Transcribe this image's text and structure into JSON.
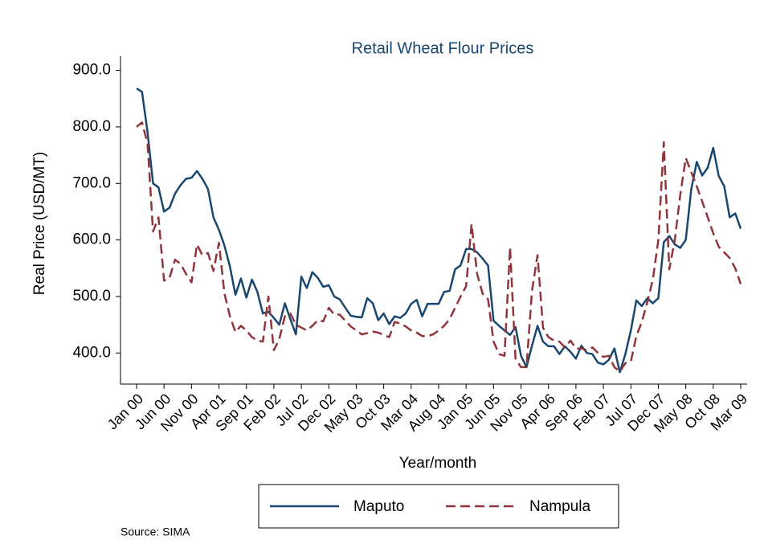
{
  "chart_data": {
    "type": "line",
    "title": "Retail Wheat Flour Prices",
    "x_label": "Year/month",
    "y_label": "Real Price (USD/MT)",
    "source": "Source: SIMA",
    "categories": [
      "Jan 00",
      null,
      null,
      null,
      null,
      "Jun 00",
      null,
      null,
      null,
      null,
      "Nov 00",
      null,
      null,
      null,
      null,
      "Apr 01",
      null,
      null,
      null,
      null,
      "Sep 01",
      null,
      null,
      null,
      null,
      "Feb 02",
      null,
      null,
      null,
      null,
      "Jul 02",
      null,
      null,
      null,
      null,
      "Dec 02",
      null,
      null,
      null,
      null,
      "May 03",
      null,
      null,
      null,
      null,
      "Oct 03",
      null,
      null,
      null,
      null,
      "Mar 04",
      null,
      null,
      null,
      null,
      "Aug 04",
      null,
      null,
      null,
      null,
      "Jan 05",
      null,
      null,
      null,
      null,
      "Jun 05",
      null,
      null,
      null,
      null,
      "Nov 05",
      null,
      null,
      null,
      null,
      "Apr 06",
      null,
      null,
      null,
      null,
      "Sep 06",
      null,
      null,
      null,
      null,
      "Feb 07",
      null,
      null,
      null,
      null,
      "Jul 07",
      null,
      null,
      null,
      null,
      "Dec 07",
      null,
      null,
      null,
      null,
      "May 08",
      null,
      null,
      null,
      null,
      "Oct 08",
      null,
      null,
      null,
      null,
      "Mar 09"
    ],
    "series": [
      {
        "name": "Maputo",
        "color": "#1a476f",
        "dash": "solid",
        "values": [
          868,
          862,
          790,
          700,
          693,
          650,
          657,
          682,
          697,
          708,
          710,
          722,
          708,
          690,
          640,
          618,
          590,
          553,
          503,
          532,
          498,
          530,
          508,
          470,
          473,
          462,
          450,
          488,
          460,
          433,
          535,
          515,
          543,
          533,
          517,
          520,
          500,
          495,
          480,
          466,
          464,
          463,
          497,
          488,
          458,
          470,
          451,
          465,
          462,
          470,
          487,
          494,
          465,
          487,
          487,
          487,
          508,
          510,
          548,
          555,
          584,
          584,
          578,
          567,
          555,
          457,
          448,
          440,
          432,
          446,
          395,
          375,
          413,
          448,
          420,
          412,
          412,
          398,
          412,
          402,
          390,
          413,
          400,
          398,
          383,
          380,
          388,
          408,
          366,
          398,
          440,
          493,
          483,
          497,
          488,
          497,
          596,
          607,
          592,
          586,
          600,
          690,
          738,
          714,
          728,
          763,
          713,
          695,
          640,
          647,
          620
        ]
      },
      {
        "name": "Nampula",
        "color": "#90353b",
        "dash": "dashed",
        "values": [
          800,
          808,
          770,
          615,
          640,
          528,
          533,
          565,
          558,
          540,
          525,
          592,
          573,
          577,
          545,
          595,
          505,
          465,
          437,
          448,
          440,
          428,
          422,
          420,
          500,
          405,
          425,
          465,
          470,
          450,
          445,
          440,
          448,
          458,
          456,
          480,
          468,
          468,
          457,
          447,
          440,
          433,
          435,
          438,
          436,
          432,
          428,
          455,
          452,
          447,
          440,
          436,
          430,
          430,
          433,
          440,
          448,
          460,
          480,
          500,
          518,
          628,
          540,
          505,
          495,
          420,
          398,
          395,
          587,
          390,
          375,
          375,
          510,
          573,
          445,
          428,
          422,
          420,
          410,
          422,
          408,
          408,
          405,
          410,
          400,
          393,
          395,
          375,
          367,
          382,
          385,
          430,
          455,
          490,
          530,
          600,
          773,
          548,
          600,
          680,
          745,
          720,
          695,
          668,
          640,
          612,
          588,
          578,
          568,
          550,
          522
        ]
      }
    ],
    "ylim": [
      345,
      925
    ],
    "yticks": [
      {
        "value": 400,
        "label": "400.0"
      },
      {
        "value": 500,
        "label": "500.0"
      },
      {
        "value": 600,
        "label": "600.0"
      },
      {
        "value": 700,
        "label": "700.0"
      },
      {
        "value": 800,
        "label": "800.0"
      },
      {
        "value": 900,
        "label": "900.0"
      }
    ],
    "grid": false,
    "legend": "bottom"
  }
}
